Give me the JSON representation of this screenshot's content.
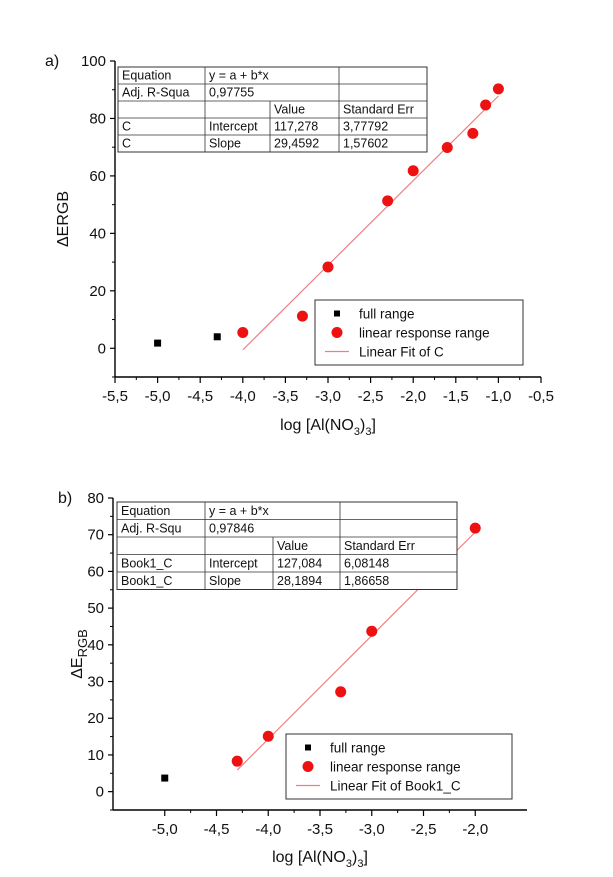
{
  "chart_data": [
    {
      "panel_label": "a)",
      "type": "scatter",
      "xlabel": "log [Al(NO3)3]",
      "ylabel": "ΔERGB",
      "xlim": [
        -5.5,
        -0.5
      ],
      "ylim": [
        -10,
        100
      ],
      "x_ticks": [
        "-5,5",
        "-5,0",
        "-4,5",
        "-4,0",
        "-3,5",
        "-3,0",
        "-2,5",
        "-2,0",
        "-1,5",
        "-1,0",
        "-0,5"
      ],
      "x_tick_values": [
        -5.5,
        -5.0,
        -4.5,
        -4.0,
        -3.5,
        -3.0,
        -2.5,
        -2.0,
        -1.5,
        -1.0,
        -0.5
      ],
      "y_ticks": [
        "0",
        "20",
        "40",
        "60",
        "80",
        "100"
      ],
      "y_tick_values": [
        0,
        20,
        40,
        60,
        80,
        100
      ],
      "series": [
        {
          "name": "full range",
          "marker": "square",
          "color": "#000000",
          "points": [
            {
              "x": -5.0,
              "y": 1.8
            },
            {
              "x": -4.3,
              "y": 4.0
            }
          ]
        },
        {
          "name": "linear response range",
          "marker": "circle",
          "color": "#ee1111",
          "points": [
            {
              "x": -4.0,
              "y": 5.5
            },
            {
              "x": -3.3,
              "y": 11.2
            },
            {
              "x": -3.0,
              "y": 28.3
            },
            {
              "x": -2.3,
              "y": 51.3
            },
            {
              "x": -2.0,
              "y": 61.8
            },
            {
              "x": -1.6,
              "y": 69.9
            },
            {
              "x": -1.3,
              "y": 74.8
            },
            {
              "x": -1.15,
              "y": 84.7
            },
            {
              "x": -1.0,
              "y": 90.3
            }
          ]
        },
        {
          "name": "Linear Fit of C",
          "marker": "line",
          "color": "#f08080",
          "intercept": 117.278,
          "slope": 29.4592,
          "x_range": [
            -4.0,
            -1.0
          ]
        }
      ],
      "legend": {
        "position": "bottom-right",
        "entries": [
          "full range",
          "linear response range",
          "Linear Fit of C"
        ]
      },
      "fit_table": {
        "position": "top-left",
        "rows": [
          [
            "Equation",
            "y = a + b*x",
            ""
          ],
          [
            "Adj. R-Squa",
            "0,97755",
            ""
          ],
          [
            "",
            "",
            "Value",
            "Standard Err"
          ],
          [
            "C",
            "Intercept",
            "117,278",
            "3,77792"
          ],
          [
            "C",
            "Slope",
            "29,4592",
            "1,57602"
          ]
        ]
      }
    },
    {
      "panel_label": "b)",
      "type": "scatter",
      "xlabel": "log [Al(NO3)3]",
      "ylabel": "ΔE_RGB",
      "xlim": [
        -5.5,
        -1.5
      ],
      "ylim": [
        -5,
        80
      ],
      "x_ticks": [
        "-5,0",
        "-4,5",
        "-4,0",
        "-3,5",
        "-3,0",
        "-2,5",
        "-2,0"
      ],
      "x_tick_values": [
        -5.0,
        -4.5,
        -4.0,
        -3.5,
        -3.0,
        -2.5,
        -2.0
      ],
      "y_ticks": [
        "0",
        "10",
        "20",
        "30",
        "40",
        "50",
        "60",
        "70",
        "80"
      ],
      "y_tick_values": [
        0,
        10,
        20,
        30,
        40,
        50,
        60,
        70,
        80
      ],
      "series": [
        {
          "name": "full range",
          "marker": "square",
          "color": "#000000",
          "points": [
            {
              "x": -5.0,
              "y": 3.7
            }
          ]
        },
        {
          "name": "linear response range",
          "marker": "circle",
          "color": "#ee1111",
          "points": [
            {
              "x": -4.3,
              "y": 8.3
            },
            {
              "x": -4.0,
              "y": 15.1
            },
            {
              "x": -3.3,
              "y": 27.2
            },
            {
              "x": -3.0,
              "y": 43.7
            },
            {
              "x": -2.3,
              "y": 63.3
            },
            {
              "x": -2.0,
              "y": 71.8
            }
          ]
        },
        {
          "name": "Linear Fit of Book1_C",
          "marker": "line",
          "color": "#f08080",
          "intercept": 127.084,
          "slope": 28.1894,
          "x_range": [
            -4.3,
            -2.0
          ]
        }
      ],
      "legend": {
        "position": "bottom-right",
        "entries": [
          "full range",
          "linear response range",
          "Linear Fit of Book1_C"
        ]
      },
      "fit_table": {
        "position": "top-left",
        "rows": [
          [
            "Equation",
            "y = a + b*x",
            ""
          ],
          [
            "Adj. R-Squ",
            "0,97846",
            ""
          ],
          [
            "",
            "",
            "Value",
            "Standard Err"
          ],
          [
            "Book1_C",
            "Intercept",
            "127,084",
            "6,08148"
          ],
          [
            "Book1_C",
            "Slope",
            "28,1894",
            "1,86658"
          ]
        ]
      }
    }
  ]
}
